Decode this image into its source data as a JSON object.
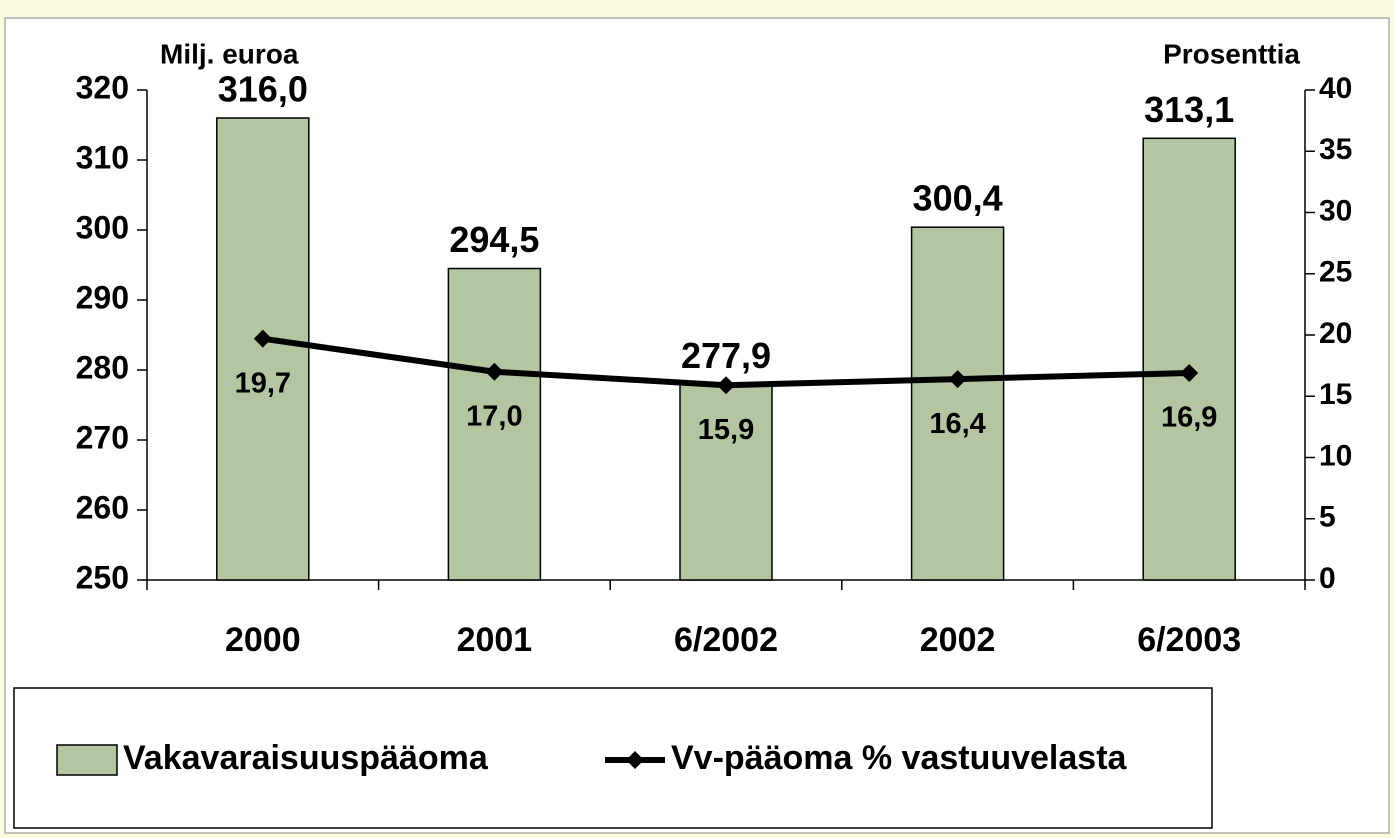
{
  "chart_data": {
    "type": "combo",
    "y_label": "Milj. euroa",
    "y2_label": "Prosenttia",
    "categories": [
      "2000",
      "2001",
      "6/2002",
      "2002",
      "6/2003"
    ],
    "series": [
      {
        "name": "Vakavaraisuuspääoma",
        "type": "bar",
        "color": "#b3c6a1",
        "values": [
          316.0,
          294.5,
          277.9,
          300.4,
          313.1
        ],
        "value_labels": [
          "316,0",
          "294,5",
          "277,9",
          "300,4",
          "313,1"
        ]
      },
      {
        "name": "Vv-pääoma % vastuuvelasta",
        "type": "line",
        "axis": "y2",
        "color": "#000000",
        "values": [
          19.7,
          17.0,
          15.9,
          16.4,
          16.9
        ],
        "value_labels": [
          "19,7",
          "17,0",
          "15,9",
          "16,4",
          "16,9"
        ]
      }
    ],
    "ylim": [
      250,
      320
    ],
    "yticks": [
      250,
      260,
      270,
      280,
      290,
      300,
      310,
      320
    ],
    "y2lim": [
      0,
      40
    ],
    "y2ticks": [
      0,
      5,
      10,
      15,
      20,
      25,
      30,
      35,
      40
    ]
  }
}
